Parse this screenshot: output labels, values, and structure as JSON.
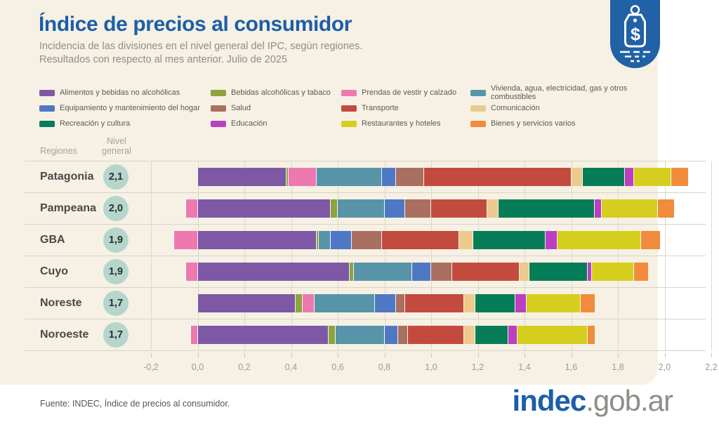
{
  "header": {
    "title": "Índice de precios al consumidor",
    "subtitle_line1": "Incidencia de las divisiones en el nivel general del IPC, según regiones.",
    "subtitle_line2": "Resultados con respecto al mes anterior. Julio de 2025"
  },
  "table": {
    "regions_header": "Regiones",
    "level_header": "Nivel\ngeneral"
  },
  "colors": {
    "accent_blue": "#1c5ea9",
    "panel_background": "#f6f1e4",
    "badge_circle": "#b5d6cc",
    "logo_badge": "#2161a5"
  },
  "chart_data": {
    "type": "bar",
    "orientation": "horizontal",
    "stacked": true,
    "grid": true,
    "xlim": [
      -0.2,
      2.2
    ],
    "x_tick_labels": [
      "-0,2",
      "0,0",
      "0,2",
      "0,4",
      "0,6",
      "0,8",
      "1,0",
      "1,2",
      "1,4",
      "1,6",
      "1,8",
      "2,0",
      "2,2"
    ],
    "divisions": [
      {
        "name": "Alimentos y bebidas no alcohólicas",
        "color": "#7d59a5"
      },
      {
        "name": "Bebidas alcohólicas y tabaco",
        "color": "#8ba43c"
      },
      {
        "name": "Prendas de vestir y calzado",
        "color": "#ee78b0"
      },
      {
        "name": "Vivienda, agua, electricidad, gas y otros combustibles",
        "color": "#5794a8"
      },
      {
        "name": "Equipamiento y mantenimiento del hogar",
        "color": "#4f78c4"
      },
      {
        "name": "Salud",
        "color": "#a9705f"
      },
      {
        "name": "Transporte",
        "color": "#c24b3e"
      },
      {
        "name": "Comunicación",
        "color": "#ecca8d"
      },
      {
        "name": "Recreación y cultura",
        "color": "#077d57"
      },
      {
        "name": "Educación",
        "color": "#bc3fc1"
      },
      {
        "name": "Restaurantes y hoteles",
        "color": "#d6ce1e"
      },
      {
        "name": "Bienes y servicios varios",
        "color": "#f08c3b"
      }
    ],
    "regions": [
      {
        "name": "Patagonia",
        "nivel_general": "2,1",
        "values": [
          0.38,
          0.01,
          0.12,
          0.28,
          0.06,
          0.12,
          0.63,
          0.05,
          0.18,
          0.04,
          0.16,
          0.07
        ]
      },
      {
        "name": "Pampeana",
        "nivel_general": "2,0",
        "values": [
          0.57,
          0.03,
          -0.05,
          0.2,
          0.09,
          0.11,
          0.24,
          0.05,
          0.41,
          0.03,
          0.24,
          0.07
        ]
      },
      {
        "name": "GBA",
        "nivel_general": "1,9",
        "values": [
          0.51,
          0.01,
          -0.1,
          0.05,
          0.09,
          0.13,
          0.33,
          0.06,
          0.31,
          0.05,
          0.36,
          0.08
        ]
      },
      {
        "name": "Cuyo",
        "nivel_general": "1,9",
        "values": [
          0.65,
          0.02,
          -0.05,
          0.25,
          0.08,
          0.09,
          0.29,
          0.04,
          0.25,
          0.02,
          0.18,
          0.06
        ]
      },
      {
        "name": "Noreste",
        "nivel_general": "1,7",
        "values": [
          0.42,
          0.03,
          0.05,
          0.26,
          0.09,
          0.04,
          0.25,
          0.05,
          0.17,
          0.05,
          0.23,
          0.06
        ]
      },
      {
        "name": "Noroeste",
        "nivel_general": "1,7",
        "values": [
          0.56,
          0.03,
          -0.03,
          0.21,
          0.06,
          0.04,
          0.24,
          0.05,
          0.14,
          0.04,
          0.3,
          0.03
        ]
      }
    ]
  },
  "footer": {
    "source": "Fuente: INDEC, Índice de precios al consumidor.",
    "brand_bold": "indec",
    "brand_rest": ".gob.ar"
  },
  "logo": {
    "icon": "price-tag"
  }
}
